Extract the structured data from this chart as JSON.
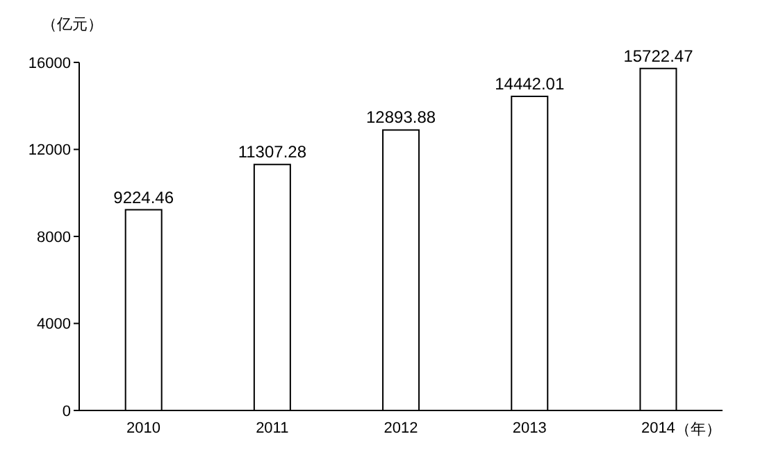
{
  "chart_data": {
    "type": "bar",
    "categories": [
      "2010",
      "2011",
      "2012",
      "2013",
      "2014"
    ],
    "values": [
      9224.46,
      11307.28,
      12893.88,
      14442.01,
      15722.47
    ],
    "color": "#ffffff",
    "ylim": [
      0,
      16000
    ],
    "yticks": [
      0,
      4000,
      8000,
      12000,
      16000
    ],
    "ylabel": "（亿元）",
    "xlabel": "（年）",
    "data_labels": true,
    "grid": false
  }
}
